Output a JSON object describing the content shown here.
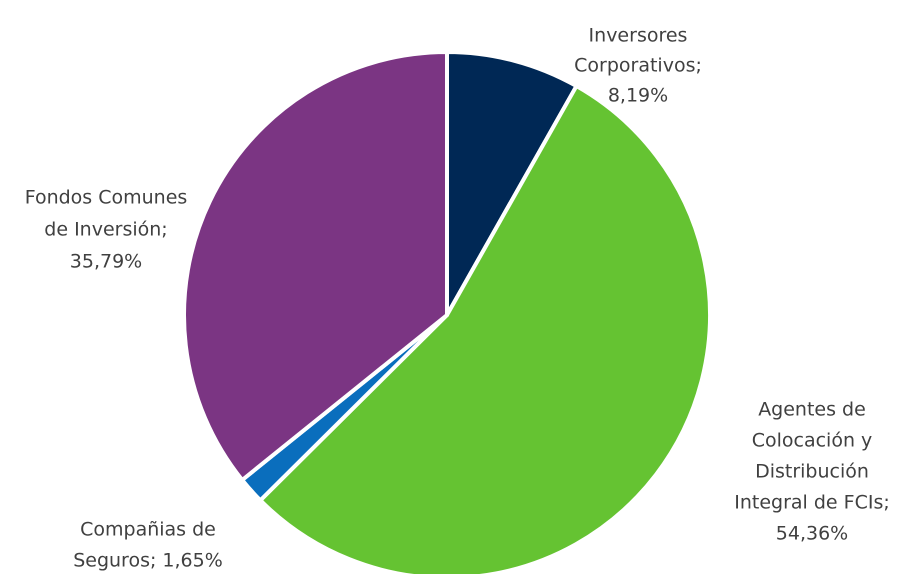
{
  "chart_data": {
    "type": "pie",
    "title": "",
    "slices": [
      {
        "label_lines": [
          "Inversores",
          "Corporativos;",
          "8,19%"
        ],
        "value": 8.19,
        "color": "#002855"
      },
      {
        "label_lines": [
          "Agentes de",
          "Colocación y",
          "Distribución",
          "Integral de FCIs;",
          "54,36%"
        ],
        "value": 54.36,
        "color": "#65C332"
      },
      {
        "label_lines": [
          "Compañias de",
          "Seguros; 1,65%"
        ],
        "value": 1.65,
        "color": "#0A6EBD"
      },
      {
        "label_lines": [
          "Fondos Comunes",
          "de Inversión;",
          "35,79%"
        ],
        "value": 35.79,
        "color": "#7B3583"
      }
    ],
    "start_angle_deg": 0,
    "direction": "clockwise",
    "legend": "none"
  }
}
